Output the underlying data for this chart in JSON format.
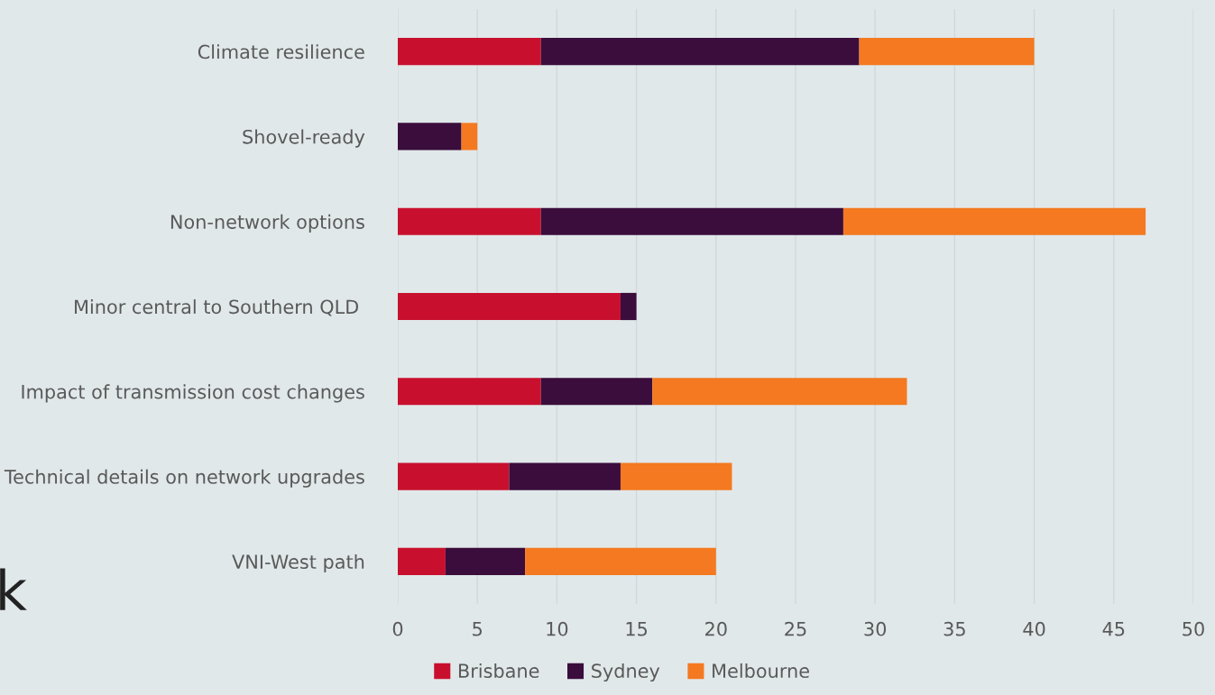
{
  "chart_data": {
    "type": "bar",
    "orientation": "horizontal",
    "stacked": true,
    "categories": [
      "Climate resilience",
      "Shovel-ready",
      "Non-network options",
      "Minor central to Southern QLD ",
      "Impact of transmission cost changes",
      "Technical details on network upgrades",
      "VNI-West path"
    ],
    "series": [
      {
        "name": "Brisbane",
        "color": "#c8102e",
        "values": [
          9,
          0,
          9,
          14,
          9,
          7,
          3
        ]
      },
      {
        "name": "Sydney",
        "color": "#3a0d3c",
        "values": [
          20,
          4,
          19,
          1,
          7,
          7,
          5
        ]
      },
      {
        "name": "Melbourne",
        "color": "#f47920",
        "values": [
          11,
          1,
          19,
          0,
          16,
          7,
          12
        ]
      }
    ],
    "xlim": [
      0,
      50
    ],
    "xticks": [
      0,
      5,
      10,
      15,
      20,
      25,
      30,
      35,
      40,
      45,
      50
    ],
    "grid": "x",
    "legend": "bottom",
    "annotations": [
      "k"
    ]
  }
}
